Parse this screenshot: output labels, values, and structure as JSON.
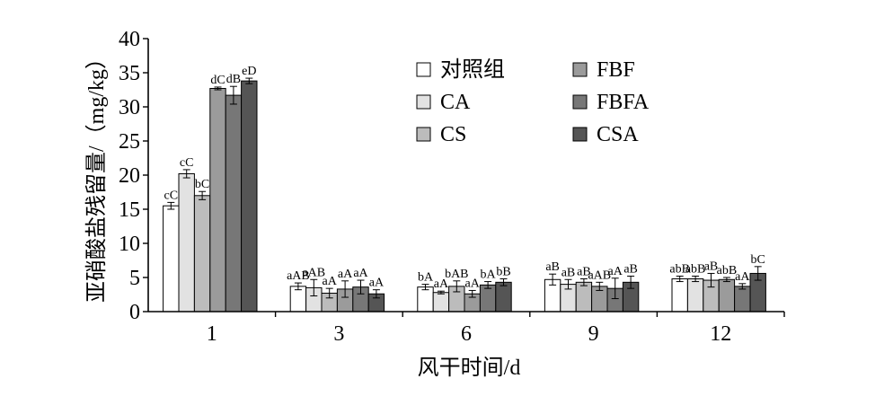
{
  "chart_data": {
    "type": "bar",
    "xlabel": "风干时间/d",
    "ylabel": "亚硝酸盐残留量/（mg/kg）",
    "ylim": [
      0,
      40
    ],
    "yticks": [
      "0",
      "5",
      "10",
      "15",
      "20",
      "25",
      "30",
      "35",
      "40"
    ],
    "categories": [
      "1",
      "3",
      "6",
      "9",
      "12"
    ],
    "legend_position": "top-right",
    "grid": false,
    "series": [
      {
        "name": "对照组",
        "color": "#ffffff",
        "values": [
          15.5,
          3.7,
          3.6,
          4.7,
          4.8
        ],
        "errors": [
          0.5,
          0.5,
          0.4,
          0.8,
          0.4
        ],
        "labels": [
          "cC",
          "aAB",
          "bA",
          "aB",
          "abB"
        ]
      },
      {
        "name": "CA",
        "color": "#e2e2e2",
        "values": [
          20.2,
          3.5,
          2.8,
          4.0,
          4.8
        ],
        "errors": [
          0.6,
          1.2,
          0.2,
          0.7,
          0.4
        ],
        "labels": [
          "cC",
          "aAB",
          "aA",
          "aB",
          "abB"
        ]
      },
      {
        "name": "CS",
        "color": "#bcbcbc",
        "values": [
          17.0,
          2.7,
          3.7,
          4.3,
          4.6
        ],
        "errors": [
          0.6,
          0.7,
          0.8,
          0.5,
          1.0
        ],
        "labels": [
          "bC",
          "aA",
          "bAB",
          "aB",
          "aB"
        ]
      },
      {
        "name": "FBF",
        "color": "#9b9b9b",
        "values": [
          32.7,
          3.3,
          2.6,
          3.7,
          4.7
        ],
        "errors": [
          0.2,
          1.2,
          0.5,
          0.6,
          0.3
        ],
        "labels": [
          "dC",
          "aA",
          "aA",
          "aAB",
          "abB"
        ]
      },
      {
        "name": "FBFA",
        "color": "#777777",
        "values": [
          31.7,
          3.6,
          3.9,
          3.4,
          3.7
        ],
        "errors": [
          1.3,
          1.0,
          0.5,
          1.5,
          0.4
        ],
        "labels": [
          "dB",
          "aA",
          "bA",
          "aA",
          "aA"
        ]
      },
      {
        "name": "CSA",
        "color": "#555555",
        "values": [
          33.8,
          2.6,
          4.3,
          4.3,
          5.6
        ],
        "errors": [
          0.4,
          0.6,
          0.5,
          0.9,
          1.0
        ],
        "labels": [
          "eD",
          "aA",
          "bB",
          "aB",
          "bC"
        ]
      }
    ]
  }
}
